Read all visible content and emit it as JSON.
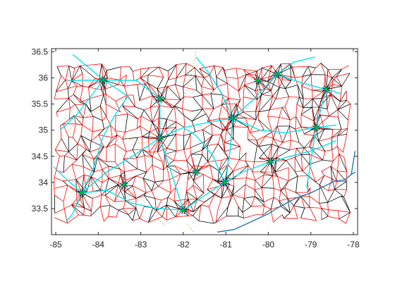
{
  "chart_data": {
    "type": "line",
    "title": "",
    "xlabel": "",
    "ylabel": "",
    "xlim": [
      -85.1,
      -77.9
    ],
    "ylim": [
      33.0,
      36.56
    ],
    "x_ticks": [
      -85,
      -84,
      -83,
      -82,
      -81,
      -80,
      -79,
      -78
    ],
    "y_ticks": [
      33.5,
      34,
      34.5,
      35,
      35.5,
      36,
      36.5
    ],
    "x_tick_labels": [
      "-85",
      "-84",
      "-83",
      "-82",
      "-81",
      "-80",
      "-79",
      "-78"
    ],
    "y_tick_labels": [
      "33.5",
      "34",
      "34.5",
      "35",
      "35.5",
      "36",
      "36.5"
    ],
    "grid": false,
    "legend": "none",
    "colors": {
      "primary_network": "#ff0000",
      "secondary_network": "#000000",
      "highways": "#00e5ee",
      "coastline": "#1f77b4",
      "connectors": "#d9a441",
      "hub_markers": "#00cc00"
    },
    "hubs": [
      {
        "x": -84.39,
        "y": 33.8
      },
      {
        "x": -83.88,
        "y": 35.96
      },
      {
        "x": -82.55,
        "y": 34.85
      },
      {
        "x": -82.0,
        "y": 33.47
      },
      {
        "x": -81.03,
        "y": 34.0
      },
      {
        "x": -80.84,
        "y": 35.23
      },
      {
        "x": -79.79,
        "y": 36.07
      },
      {
        "x": -78.64,
        "y": 35.78
      },
      {
        "x": -78.88,
        "y": 35.05
      },
      {
        "x": -80.25,
        "y": 35.95
      },
      {
        "x": -82.55,
        "y": 35.6
      },
      {
        "x": -81.7,
        "y": 34.2
      },
      {
        "x": -83.4,
        "y": 33.95
      },
      {
        "x": -79.95,
        "y": 34.4
      }
    ],
    "series": [
      {
        "color": "#00e5ee",
        "lines": [
          [
            [
              -84.39,
              33.8
            ],
            [
              -84.1,
              34.3
            ],
            [
              -83.9,
              34.85
            ],
            [
              -83.6,
              35.3
            ],
            [
              -83.3,
              35.65
            ],
            [
              -83.88,
              35.96
            ],
            [
              -84.3,
              36.25
            ],
            [
              -84.6,
              36.45
            ]
          ],
          [
            [
              -84.39,
              33.8
            ],
            [
              -83.8,
              33.85
            ],
            [
              -83.2,
              33.6
            ],
            [
              -82.6,
              33.5
            ],
            [
              -82.0,
              33.47
            ],
            [
              -81.5,
              33.75
            ],
            [
              -81.03,
              34.0
            ],
            [
              -80.6,
              34.2
            ],
            [
              -80.1,
              34.35
            ],
            [
              -79.5,
              34.5
            ],
            [
              -79.0,
              34.6
            ],
            [
              -78.4,
              34.8
            ]
          ],
          [
            [
              -84.39,
              33.8
            ],
            [
              -83.8,
              34.2
            ],
            [
              -83.2,
              34.5
            ],
            [
              -82.55,
              34.85
            ],
            [
              -82.0,
              35.05
            ],
            [
              -81.4,
              35.15
            ],
            [
              -80.84,
              35.23
            ],
            [
              -80.4,
              35.55
            ],
            [
              -79.79,
              36.07
            ],
            [
              -79.2,
              35.9
            ],
            [
              -78.64,
              35.78
            ],
            [
              -78.3,
              35.7
            ]
          ],
          [
            [
              -81.03,
              34.0
            ],
            [
              -80.9,
              34.6
            ],
            [
              -80.84,
              35.23
            ],
            [
              -81.1,
              35.7
            ],
            [
              -81.4,
              36.1
            ],
            [
              -81.7,
              36.4
            ]
          ],
          [
            [
              -82.0,
              33.47
            ],
            [
              -82.25,
              34.1
            ],
            [
              -82.55,
              34.85
            ],
            [
              -82.55,
              35.6
            ],
            [
              -83.1,
              35.95
            ],
            [
              -83.88,
              35.96
            ],
            [
              -84.7,
              35.95
            ]
          ],
          [
            [
              -84.39,
              33.8
            ],
            [
              -84.8,
              34.1
            ],
            [
              -85.05,
              34.3
            ]
          ],
          [
            [
              -78.64,
              35.78
            ],
            [
              -78.8,
              35.3
            ],
            [
              -78.88,
              35.05
            ],
            [
              -79.0,
              34.4
            ],
            [
              -79.1,
              33.9
            ]
          ],
          [
            [
              -84.39,
              33.8
            ],
            [
              -84.6,
              33.4
            ],
            [
              -84.75,
              33.25
            ]
          ],
          [
            [
              -84.9,
              35.0
            ],
            [
              -84.5,
              35.3
            ],
            [
              -83.88,
              35.96
            ]
          ],
          [
            [
              -79.79,
              36.07
            ],
            [
              -79.4,
              36.3
            ],
            [
              -78.9,
              36.4
            ]
          ],
          [
            [
              -80.84,
              35.23
            ],
            [
              -80.2,
              35.0
            ],
            [
              -79.6,
              34.95
            ],
            [
              -78.88,
              35.05
            ],
            [
              -78.4,
              35.1
            ]
          ],
          [
            [
              -81.03,
              34.0
            ],
            [
              -81.3,
              34.5
            ],
            [
              -81.7,
              34.9
            ],
            [
              -82.0,
              35.05
            ]
          ]
        ]
      },
      {
        "color": "#1f77b4",
        "lines": [
          [
            [
              -81.2,
              33.05
            ],
            [
              -80.8,
              33.1
            ],
            [
              -80.4,
              33.25
            ],
            [
              -80.0,
              33.4
            ],
            [
              -79.7,
              33.55
            ],
            [
              -79.35,
              33.7
            ],
            [
              -79.0,
              33.8
            ],
            [
              -78.7,
              33.92
            ],
            [
              -78.45,
              34.02
            ],
            [
              -78.2,
              34.05
            ],
            [
              -78.05,
              34.15
            ],
            [
              -77.95,
              34.2
            ]
          ],
          [
            [
              -78.05,
              34.15
            ],
            [
              -78.0,
              34.4
            ],
            [
              -77.96,
              34.6
            ]
          ]
        ]
      },
      {
        "color": "#d9a441",
        "dashed": true,
        "lines": [
          [
            [
              -81.7,
              36.5
            ],
            [
              -81.8,
              36.1
            ],
            [
              -81.95,
              35.7
            ]
          ],
          [
            [
              -83.5,
              34.9
            ],
            [
              -83.0,
              34.75
            ],
            [
              -82.7,
              34.8
            ]
          ],
          [
            [
              -84.7,
              35.0
            ],
            [
              -84.3,
              35.25
            ],
            [
              -83.9,
              35.45
            ]
          ],
          [
            [
              -81.9,
              33.2
            ],
            [
              -81.75,
              33.05
            ]
          ],
          [
            [
              -82.6,
              33.3
            ],
            [
              -82.4,
              33.15
            ]
          ]
        ]
      }
    ]
  }
}
